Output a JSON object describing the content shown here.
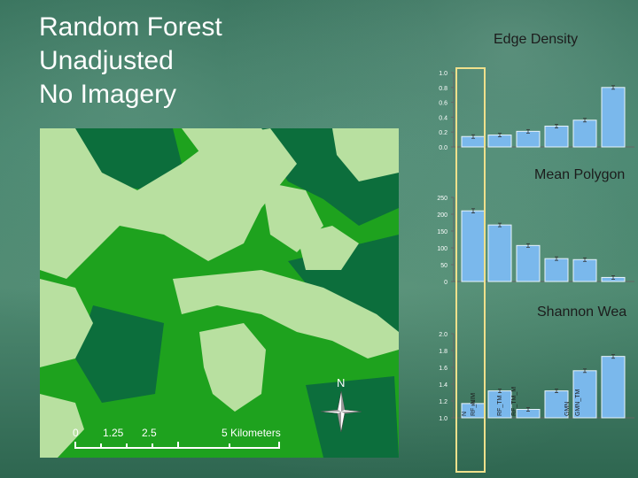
{
  "slide": {
    "title_lines": [
      "Random Forest",
      "Unadjusted",
      "No Imagery"
    ]
  },
  "map": {
    "north_label": "N",
    "scale_labels": [
      "0",
      "1.25",
      "2.5",
      "5 Kilometers"
    ],
    "colors": {
      "forest": "#1ea21e",
      "dark_forest": "#0c6e3c",
      "open": "#b8e0a0",
      "bright": "#c9e8b8"
    }
  },
  "chart_data": [
    {
      "type": "bar",
      "title": "Edge Density",
      "yticks": [
        "1.0",
        "0.8",
        "0.6",
        "0.4",
        "0.2",
        "0.0"
      ],
      "ylim": [
        0,
        1
      ],
      "values": [
        0.14,
        0.16,
        0.21,
        0.28,
        0.36,
        0.8
      ],
      "bar_color": "#7ab8ec"
    },
    {
      "type": "bar",
      "title": "Mean Polygon",
      "yticks": [
        "250",
        "200",
        "150",
        "100",
        "50",
        "0"
      ],
      "ylim": [
        0,
        250
      ],
      "values": [
        210,
        168,
        107,
        68,
        65,
        12
      ],
      "bar_color": "#7ab8ec"
    },
    {
      "type": "bar",
      "title": "Shannon Wea",
      "yticks": [
        "2.0",
        "1.8",
        "1.6",
        "1.4",
        "1.2",
        "1.0"
      ],
      "ylim": [
        1,
        2
      ],
      "values": [
        1.17,
        1.32,
        1.1,
        1.32,
        1.56,
        1.73
      ],
      "bar_color": "#7ab8ec",
      "category_labels": [
        "N",
        "RF_NIM",
        "RF_TM",
        "RF_TM_M",
        "GMN",
        "GMN_TM"
      ]
    }
  ]
}
